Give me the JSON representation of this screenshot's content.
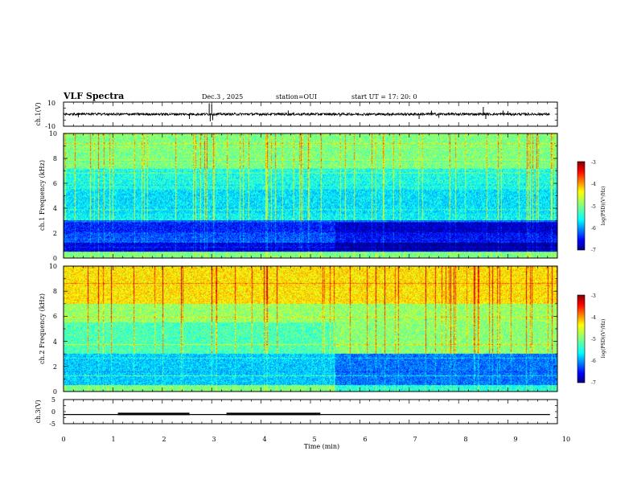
{
  "header": {
    "title": "VLF Spectra",
    "date": "Dec.3 , 2025",
    "station": "station=OUI",
    "start_time": "start UT = 17: 20: 0"
  },
  "chart_data": [
    {
      "type": "line",
      "name": "ch1-waveform",
      "ylabel": "ch.1(V)",
      "ylim": [
        -10,
        10
      ],
      "yticks": [
        "10",
        "-10"
      ],
      "xlim": [
        0,
        10
      ],
      "baseline": 0,
      "noise_amplitude": 1.0,
      "spikes": [
        {
          "t": 0.3,
          "v": -2.5
        },
        {
          "t": 2.55,
          "v": -4
        },
        {
          "t": 2.95,
          "v": 9
        },
        {
          "t": 2.97,
          "v": -6
        },
        {
          "t": 3.0,
          "v": 8
        },
        {
          "t": 3.02,
          "v": -5
        },
        {
          "t": 4.55,
          "v": 3
        },
        {
          "t": 5.6,
          "v": -2
        },
        {
          "t": 7.2,
          "v": -4
        },
        {
          "t": 7.45,
          "v": 3
        },
        {
          "t": 7.6,
          "v": -3
        },
        {
          "t": 8.5,
          "v": 6
        },
        {
          "t": 8.55,
          "v": -4
        },
        {
          "t": 8.9,
          "v": 3
        },
        {
          "t": 9.0,
          "v": 2.5
        }
      ]
    },
    {
      "type": "heatmap",
      "name": "ch1-spectrogram",
      "ylabel": "ch.1 Frequency (kHz)",
      "yticks": [
        "0",
        "2",
        "4",
        "6",
        "8",
        "10"
      ],
      "ylim": [
        0,
        10
      ],
      "xlim": [
        0,
        10
      ],
      "colorbar": {
        "label": "log(PSD)(V²/Hz)",
        "ticks": [
          "-3",
          "-4",
          "-5",
          "-6",
          "-7"
        ],
        "range": [
          -7,
          -3
        ]
      },
      "bands": [
        {
          "f0": 0.0,
          "f1": 0.5,
          "level": -5.0
        },
        {
          "f0": 0.5,
          "f1": 1.2,
          "level": -6.6
        },
        {
          "f0": 1.2,
          "f1": 2.0,
          "level": -6.2
        },
        {
          "f0": 2.0,
          "f1": 3.0,
          "level": -6.4
        },
        {
          "f0": 3.0,
          "f1": 3.6,
          "level": -5.5
        },
        {
          "f0": 3.6,
          "f1": 5.5,
          "level": -5.6
        },
        {
          "f0": 5.5,
          "f1": 7.2,
          "level": -5.4
        },
        {
          "f0": 7.2,
          "f1": 10.0,
          "level": -5.0
        }
      ]
    },
    {
      "type": "heatmap",
      "name": "ch2-spectrogram",
      "ylabel": "ch.2 Frequency (kHz)",
      "yticks": [
        "0",
        "2",
        "4",
        "6",
        "8",
        "10"
      ],
      "ylim": [
        0,
        10
      ],
      "xlim": [
        0,
        10
      ],
      "colorbar": {
        "label": "log(PSD)(V²/Hz)",
        "ticks": [
          "-3",
          "-4",
          "-5",
          "-6",
          "-7"
        ],
        "range": [
          -7,
          -3
        ]
      },
      "bands": [
        {
          "f0": 0.0,
          "f1": 0.5,
          "level": -5.0
        },
        {
          "f0": 0.5,
          "f1": 3.0,
          "level": -5.7
        },
        {
          "f0": 3.0,
          "f1": 5.5,
          "level": -5.2
        },
        {
          "f0": 5.5,
          "f1": 7.0,
          "level": -4.9
        },
        {
          "f0": 7.0,
          "f1": 10.0,
          "level": -4.4
        }
      ]
    },
    {
      "type": "line",
      "name": "ch3-signal",
      "ylabel": "ch.3(V)",
      "ylim": [
        -5,
        5
      ],
      "yticks": [
        "5",
        "0",
        "-5"
      ],
      "xlim": [
        0,
        10
      ],
      "level": -1.2,
      "pulses": [
        {
          "t0": 1.1,
          "t1": 2.55
        },
        {
          "t0": 3.3,
          "t1": 5.2
        }
      ]
    }
  ],
  "x_axis": {
    "label": "Time (min)",
    "ticks": [
      "0",
      "1",
      "2",
      "3",
      "4",
      "5",
      "6",
      "7",
      "8",
      "9",
      "10"
    ],
    "range": [
      0,
      10
    ]
  }
}
